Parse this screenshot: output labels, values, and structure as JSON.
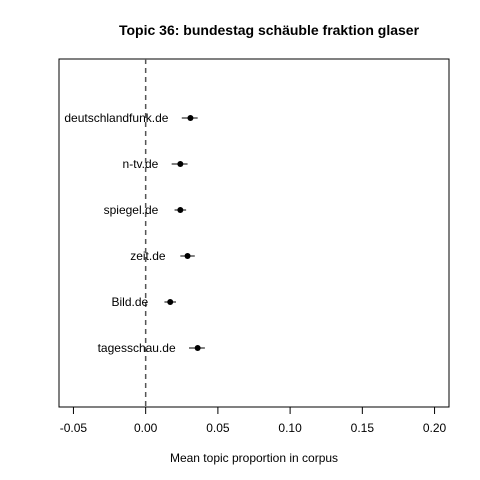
{
  "chart_data": {
    "type": "dot-with-intervals",
    "title": "Topic 36: bundestag schäuble fraktion glaser",
    "xlabel": "Mean topic proportion in corpus",
    "ylabel": "",
    "xlim": [
      -0.06,
      0.21
    ],
    "x_ticks": [
      -0.05,
      0.0,
      0.05,
      0.1,
      0.15,
      0.2
    ],
    "x_tick_labels": [
      "-0.05",
      "0.00",
      "0.05",
      "0.10",
      "0.15",
      "0.20"
    ],
    "reference_line": {
      "x": 0.0,
      "style": "dashed"
    },
    "grid": false,
    "points": [
      {
        "label": "deutschlandfunk.de",
        "estimate": 0.031,
        "lower": 0.025,
        "upper": 0.036
      },
      {
        "label": "n-tv.de",
        "estimate": 0.024,
        "lower": 0.018,
        "upper": 0.029
      },
      {
        "label": "spiegel.de",
        "estimate": 0.024,
        "lower": 0.02,
        "upper": 0.028
      },
      {
        "label": "zeit.de",
        "estimate": 0.029,
        "lower": 0.024,
        "upper": 0.034
      },
      {
        "label": "Bild.de",
        "estimate": 0.017,
        "lower": 0.013,
        "upper": 0.021
      },
      {
        "label": "tagesschau.de",
        "estimate": 0.036,
        "lower": 0.03,
        "upper": 0.041
      }
    ]
  }
}
